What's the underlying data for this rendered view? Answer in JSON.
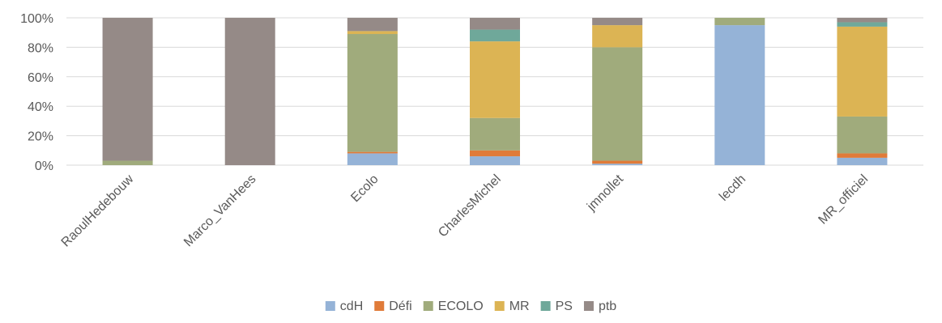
{
  "chart_data": {
    "type": "bar",
    "stacking": "percent",
    "categories": [
      "RaoulHedebouw",
      "Marco_VanHees",
      "Ecolo",
      "CharlesMichel",
      "jmnollet",
      "lecdh",
      "MR_officiel"
    ],
    "series": [
      {
        "name": "cdH",
        "color": "#95b3d7",
        "values": [
          0,
          0,
          8,
          6,
          1,
          95,
          5
        ]
      },
      {
        "name": "Défi",
        "color": "#e07b39",
        "values": [
          0,
          0,
          1,
          4,
          2,
          0,
          3
        ]
      },
      {
        "name": "ECOLO",
        "color": "#a0ab7c",
        "values": [
          3,
          0,
          80,
          22,
          77,
          5,
          25
        ]
      },
      {
        "name": "MR",
        "color": "#dcb454",
        "values": [
          0,
          0,
          2,
          52,
          15,
          0,
          61
        ]
      },
      {
        "name": "PS",
        "color": "#6fa89a",
        "values": [
          0,
          0,
          0,
          8,
          0,
          0,
          3
        ]
      },
      {
        "name": "ptb",
        "color": "#958a87",
        "values": [
          97,
          100,
          9,
          8,
          5,
          0,
          3
        ]
      }
    ],
    "yticks": [
      "0%",
      "20%",
      "40%",
      "60%",
      "80%",
      "100%"
    ],
    "ylim": [
      0,
      100
    ],
    "grid": true,
    "legend_position": "bottom"
  }
}
